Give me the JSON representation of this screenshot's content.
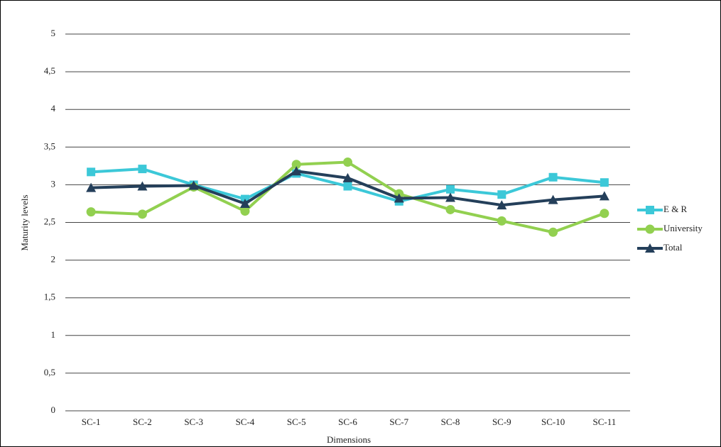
{
  "chart_data": {
    "type": "line",
    "x_label": "Dimensions",
    "y_label": "Maturity levels",
    "categories": [
      "SC-1",
      "SC-2",
      "SC-3",
      "SC-4",
      "SC-5",
      "SC-6",
      "SC-7",
      "SC-8",
      "SC-9",
      "SC-10",
      "SC-11"
    ],
    "series": [
      {
        "name": "E & R",
        "color": "#3cc8d8",
        "marker": "square",
        "values": [
          3.17,
          3.21,
          3.0,
          2.81,
          3.15,
          2.98,
          2.78,
          2.94,
          2.87,
          3.1,
          3.03
        ]
      },
      {
        "name": "University",
        "color": "#92d050",
        "marker": "circle",
        "values": [
          2.64,
          2.61,
          2.97,
          2.65,
          3.27,
          3.3,
          2.88,
          2.67,
          2.52,
          2.37,
          2.62
        ]
      },
      {
        "name": "Total",
        "color": "#243f5a",
        "marker": "triangle",
        "values": [
          2.96,
          2.98,
          2.99,
          2.75,
          3.18,
          3.09,
          2.82,
          2.83,
          2.73,
          2.8,
          2.85
        ]
      }
    ],
    "ylim": [
      0,
      5
    ],
    "yticks": [
      0,
      {
        "value": 0.5,
        "label": "0,5"
      },
      1,
      {
        "value": 1.5,
        "label": "1,5"
      },
      2,
      {
        "value": 2.5,
        "label": "2,5"
      },
      3,
      {
        "value": 3.5,
        "label": "3,5"
      },
      4,
      {
        "value": 4.5,
        "label": "4,5"
      },
      5
    ],
    "grid": true,
    "legend": "right"
  }
}
